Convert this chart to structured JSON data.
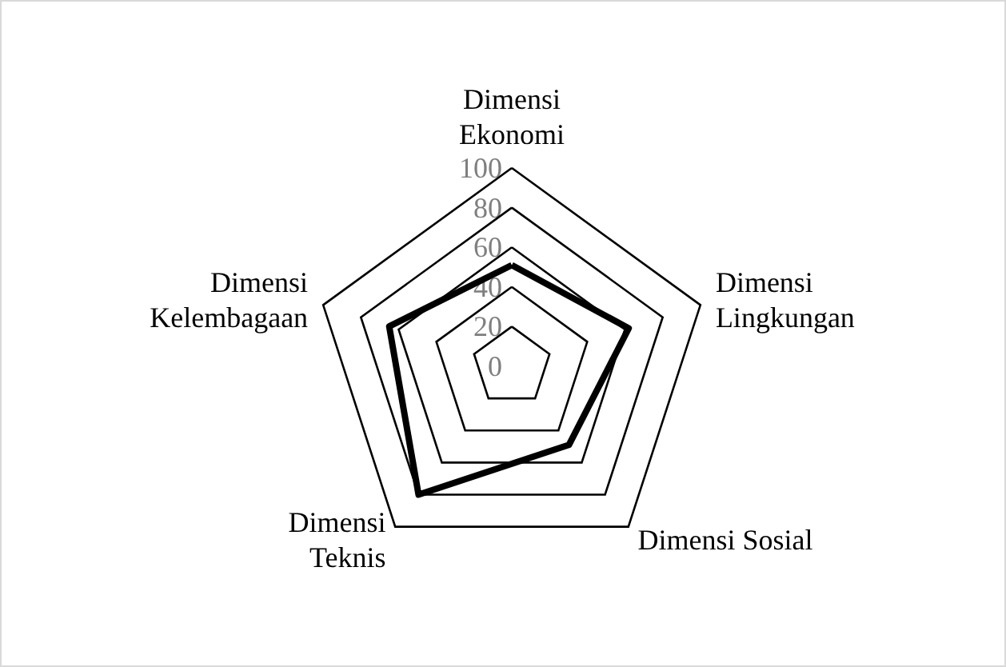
{
  "chart_data": {
    "type": "radar",
    "categories": [
      "Dimensi\nEkonomi",
      "Dimensi\nLingkungan",
      "Dimensi Sosial",
      "Dimensi\nTeknis",
      "Dimensi\nKelembagaan"
    ],
    "series": [
      {
        "color": "#000000",
        "values": [
          51,
          62,
          49,
          80,
          65
        ]
      }
    ],
    "ylim": [
      0,
      100
    ],
    "yticks": [
      0,
      20,
      40,
      60,
      80,
      100
    ],
    "marker": "none"
  }
}
